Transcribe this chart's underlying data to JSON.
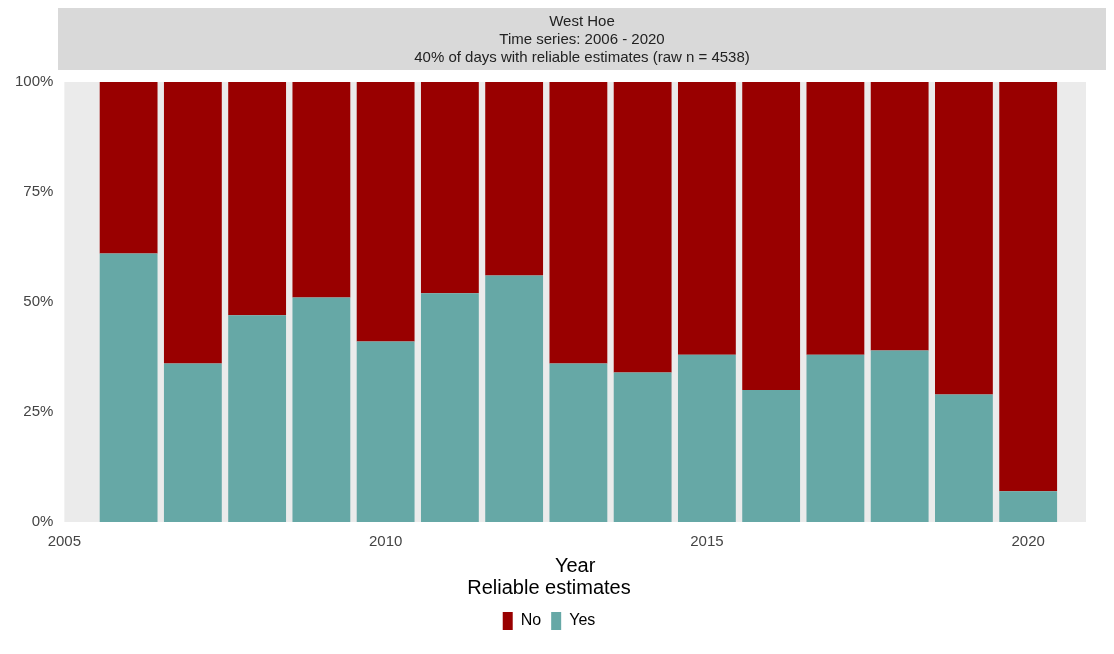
{
  "chart_data": {
    "type": "bar",
    "title": "West Hoe",
    "subtitle": "Time series: 2006 - 2020",
    "annotations": [
      "40% of days with reliable estimates (raw n = 4538)"
    ],
    "xlabel": "Year",
    "legend_title": "Reliable estimates",
    "x": [
      2006,
      2007,
      2008,
      2009,
      2010,
      2011,
      2012,
      2013,
      2014,
      2015,
      2016,
      2017,
      2018,
      2019,
      2020
    ],
    "stacked": true,
    "series": [
      {
        "name": "Yes",
        "color": "#66a8a6",
        "values": [
          61,
          36,
          47,
          51,
          41,
          52,
          56,
          36,
          34,
          38,
          30,
          38,
          39,
          29,
          7
        ]
      },
      {
        "name": "No",
        "color": "#990000",
        "values": [
          39,
          64,
          53,
          49,
          59,
          48,
          44,
          64,
          66,
          62,
          70,
          62,
          61,
          71,
          93
        ]
      }
    ],
    "xlim": [
      2005,
      2020.9
    ],
    "xticks": [
      2005,
      2010,
      2015,
      2020
    ],
    "ylim": [
      0,
      100
    ],
    "yticks": [
      {
        "value": 0,
        "label": "0%"
      },
      {
        "value": 25,
        "label": "25%"
      },
      {
        "value": 50,
        "label": "50%"
      },
      {
        "value": 75,
        "label": "75%"
      },
      {
        "value": 100,
        "label": "100%"
      }
    ],
    "grid": false,
    "legend": "bottom"
  }
}
